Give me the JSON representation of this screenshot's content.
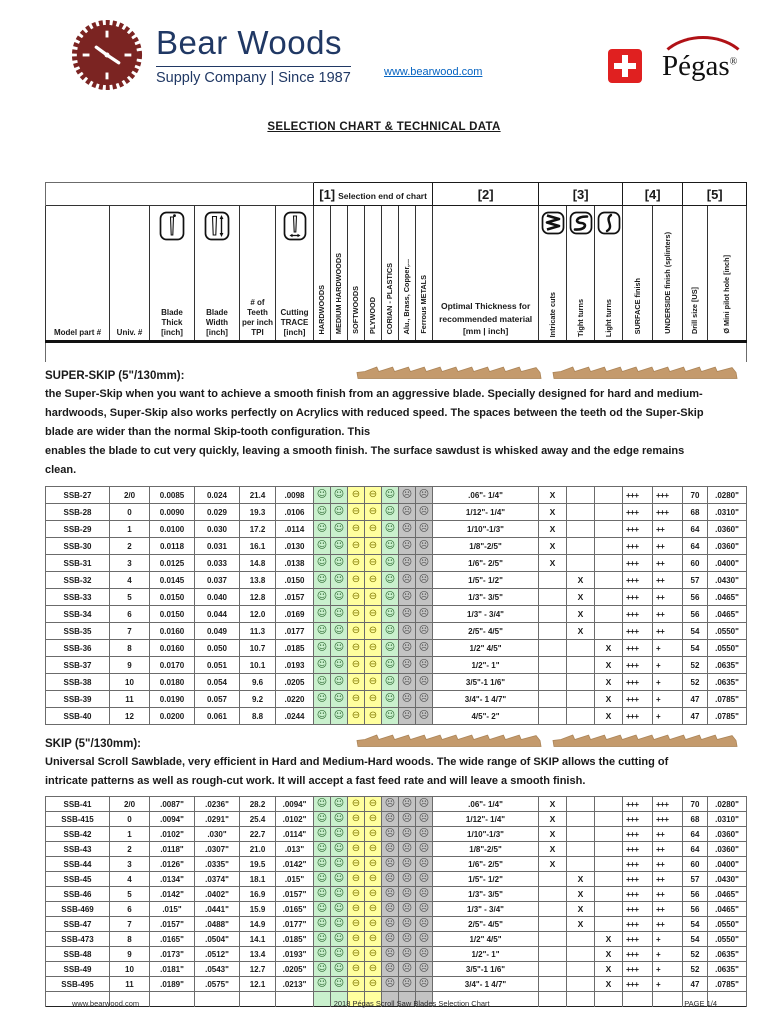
{
  "brand": {
    "name": "Bear Woods",
    "tagline": "Supply Company | Since 1987",
    "website": "www.bearwood.com",
    "partner": "Pégas",
    "partner_reg": "®",
    "colors": {
      "logo_maroon": "#7b2422",
      "navy": "#203864",
      "link_blue": "#0563c1",
      "swiss_red": "#e02020",
      "pegas_arc": "#b01116"
    }
  },
  "title": "SELECTION CHART & TECHNICAL DATA",
  "table": {
    "groups": [
      {
        "label": "[1]",
        "sublabel": "Selection end of chart"
      },
      {
        "label": "[2]",
        "sublabel": ""
      },
      {
        "label": "[3]",
        "sublabel": ""
      },
      {
        "label": "[4]",
        "sublabel": ""
      },
      {
        "label": "[5]",
        "sublabel": ""
      }
    ],
    "columns": [
      {
        "label": "Model part #"
      },
      {
        "label": "Univ. #"
      },
      {
        "label": "Blade Thick [inch]"
      },
      {
        "label": "Blade Width [inch]"
      },
      {
        "label": "# of Teeth per inch TPI"
      },
      {
        "label": "Cutting TRACE [inch]"
      },
      {
        "label": "HARDWOODS"
      },
      {
        "label": "MEDIUM HARDWOODS"
      },
      {
        "label": "SOFTWOODS"
      },
      {
        "label": "PLYWOOD"
      },
      {
        "label": "CORIAN - PLASTICS"
      },
      {
        "label": "Alu., Brass, Copper,..."
      },
      {
        "label": "Ferrous METALS"
      },
      {
        "label": "Optimal Thickness for recommended material [mm | inch]"
      },
      {
        "label": "Intricate cuts"
      },
      {
        "label": "Tight turns"
      },
      {
        "label": "Light turns"
      },
      {
        "label": "SURFACE finish"
      },
      {
        "label": "UNDERSIDE finish (splinters)"
      },
      {
        "label": "Drill size [US]"
      },
      {
        "label": "Ø Mini pilot hole [inch]"
      }
    ],
    "face_legend": {
      "happy": "☺",
      "neutral": "⊖",
      "sad": "☹"
    }
  },
  "sections": [
    {
      "heading": "SUPER-SKIP (5\"/130mm):",
      "description": "the Super-Skip when you want to achieve a smooth finish from an aggressive blade. Specially designed for hard and medium-hardwoods, Super-Skip also works perfectly on Acrylics with reduced speed. The spaces between the teeth od the Super-Skip blade are wider than the normal Skip-tooth configuration. This\nenables the blade to cut very quickly, leaving a smooth finish. The surface sawdust is whisked away and the edge remains clean.",
      "row_faces": [
        "happy",
        "happy",
        "neutral",
        "neutral",
        "happy",
        "sad",
        "sad"
      ],
      "partial_next_row": false,
      "rows": [
        {
          "model": "SSB-27",
          "univ": "2/0",
          "thick": "0.0085",
          "width": "0.024",
          "tpi": "21.4",
          "trace": ".0098",
          "range": ".06\"- 1/4\"",
          "turn": "intricate",
          "surface": "+++",
          "underside": "+++",
          "drill": "70",
          "pilot": ".0280\""
        },
        {
          "model": "SSB-28",
          "univ": "0",
          "thick": "0.0090",
          "width": "0.029",
          "tpi": "19.3",
          "trace": ".0106",
          "range": "1/12\"- 1/4\"",
          "turn": "intricate",
          "surface": "+++",
          "underside": "+++",
          "drill": "68",
          "pilot": ".0310\""
        },
        {
          "model": "SSB-29",
          "univ": "1",
          "thick": "0.0100",
          "width": "0.030",
          "tpi": "17.2",
          "trace": ".0114",
          "range": "1/10\"-1/3\"",
          "turn": "intricate",
          "surface": "+++",
          "underside": "++",
          "drill": "64",
          "pilot": ".0360\""
        },
        {
          "model": "SSB-30",
          "univ": "2",
          "thick": "0.0118",
          "width": "0.031",
          "tpi": "16.1",
          "trace": ".0130",
          "range": "1/8\"-2/5\"",
          "turn": "intricate",
          "surface": "+++",
          "underside": "++",
          "drill": "64",
          "pilot": ".0360\""
        },
        {
          "model": "SSB-31",
          "univ": "3",
          "thick": "0.0125",
          "width": "0.033",
          "tpi": "14.8",
          "trace": ".0138",
          "range": "1/6\"- 2/5\"",
          "turn": "intricate",
          "surface": "+++",
          "underside": "++",
          "drill": "60",
          "pilot": ".0400\""
        },
        {
          "model": "SSB-32",
          "univ": "4",
          "thick": "0.0145",
          "width": "0.037",
          "tpi": "13.8",
          "trace": ".0150",
          "range": "1/5\"- 1/2\"",
          "turn": "tight",
          "surface": "+++",
          "underside": "++",
          "drill": "57",
          "pilot": ".0430\""
        },
        {
          "model": "SSB-33",
          "univ": "5",
          "thick": "0.0150",
          "width": "0.040",
          "tpi": "12.8",
          "trace": ".0157",
          "range": "1/3\"- 3/5\"",
          "turn": "tight",
          "surface": "+++",
          "underside": "++",
          "drill": "56",
          "pilot": ".0465\""
        },
        {
          "model": "SSB-34",
          "univ": "6",
          "thick": "0.0150",
          "width": "0.044",
          "tpi": "12.0",
          "trace": ".0169",
          "range": "1/3\" - 3/4\"",
          "turn": "tight",
          "surface": "+++",
          "underside": "++",
          "drill": "56",
          "pilot": ".0465\""
        },
        {
          "model": "SSB-35",
          "univ": "7",
          "thick": "0.0160",
          "width": "0.049",
          "tpi": "11.3",
          "trace": ".0177",
          "range": "2/5\"- 4/5\"",
          "turn": "tight",
          "surface": "+++",
          "underside": "++",
          "drill": "54",
          "pilot": ".0550\""
        },
        {
          "model": "SSB-36",
          "univ": "8",
          "thick": "0.0160",
          "width": "0.050",
          "tpi": "10.7",
          "trace": ".0185",
          "range": "1/2\" 4/5\"",
          "turn": "light",
          "surface": "+++",
          "underside": "+",
          "drill": "54",
          "pilot": ".0550\""
        },
        {
          "model": "SSB-37",
          "univ": "9",
          "thick": "0.0170",
          "width": "0.051",
          "tpi": "10.1",
          "trace": ".0193",
          "range": "1/2\"- 1\"",
          "turn": "light",
          "surface": "+++",
          "underside": "+",
          "drill": "52",
          "pilot": ".0635\""
        },
        {
          "model": "SSB-38",
          "univ": "10",
          "thick": "0.0180",
          "width": "0.054",
          "tpi": "9.6",
          "trace": ".0205",
          "range": "3/5\"-1 1/6\"",
          "turn": "light",
          "surface": "+++",
          "underside": "+",
          "drill": "52",
          "pilot": ".0635\""
        },
        {
          "model": "SSB-39",
          "univ": "11",
          "thick": "0.0190",
          "width": "0.057",
          "tpi": "9.2",
          "trace": ".0220",
          "range": "3/4\"- 1 4/7\"",
          "turn": "light",
          "surface": "+++",
          "underside": "+",
          "drill": "47",
          "pilot": ".0785\""
        },
        {
          "model": "SSB-40",
          "univ": "12",
          "thick": "0.0200",
          "width": "0.061",
          "tpi": "8.8",
          "trace": ".0244",
          "range": "4/5\"- 2\"",
          "turn": "light",
          "surface": "+++",
          "underside": "+",
          "drill": "47",
          "pilot": ".0785\""
        }
      ]
    },
    {
      "heading": "SKIP (5\"/130mm):",
      "description": "Universal Scroll Sawblade, very efficient in Hard and Medium-Hard woods. The wide range of SKIP allows the cutting of intricate patterns as well as rough-cut work. It will accept a fast feed rate and will leave a smooth finish.",
      "row_faces": [
        "happy",
        "happy",
        "neutral",
        "neutral",
        "sad",
        "sad",
        "sad"
      ],
      "partial_next_row": true,
      "rows": [
        {
          "model": "SSB-41",
          "univ": "2/0",
          "thick": ".0087\"",
          "width": ".0236\"",
          "tpi": "28.2",
          "trace": ".0094\"",
          "range": ".06\"- 1/4\"",
          "turn": "intricate",
          "surface": "+++",
          "underside": "+++",
          "drill": "70",
          "pilot": ".0280\""
        },
        {
          "model": "SSB-415",
          "univ": "0",
          "thick": ".0094\"",
          "width": ".0291\"",
          "tpi": "25.4",
          "trace": ".0102\"",
          "range": "1/12\"- 1/4\"",
          "turn": "intricate",
          "surface": "+++",
          "underside": "+++",
          "drill": "68",
          "pilot": ".0310\""
        },
        {
          "model": "SSB-42",
          "univ": "1",
          "thick": ".0102\"",
          "width": ".030\"",
          "tpi": "22.7",
          "trace": ".0114\"",
          "range": "1/10\"-1/3\"",
          "turn": "intricate",
          "surface": "+++",
          "underside": "++",
          "drill": "64",
          "pilot": ".0360\""
        },
        {
          "model": "SSB-43",
          "univ": "2",
          "thick": ".0118\"",
          "width": ".0307\"",
          "tpi": "21.0",
          "trace": ".013\"",
          "range": "1/8\"-2/5\"",
          "turn": "intricate",
          "surface": "+++",
          "underside": "++",
          "drill": "64",
          "pilot": ".0360\""
        },
        {
          "model": "SSB-44",
          "univ": "3",
          "thick": ".0126\"",
          "width": ".0335\"",
          "tpi": "19.5",
          "trace": ".0142\"",
          "range": "1/6\"- 2/5\"",
          "turn": "intricate",
          "surface": "+++",
          "underside": "++",
          "drill": "60",
          "pilot": ".0400\""
        },
        {
          "model": "SSB-45",
          "univ": "4",
          "thick": ".0134\"",
          "width": ".0374\"",
          "tpi": "18.1",
          "trace": ".015\"",
          "range": "1/5\"- 1/2\"",
          "turn": "tight",
          "surface": "+++",
          "underside": "++",
          "drill": "57",
          "pilot": ".0430\""
        },
        {
          "model": "SSB-46",
          "univ": "5",
          "thick": ".0142\"",
          "width": ".0402\"",
          "tpi": "16.9",
          "trace": ".0157\"",
          "range": "1/3\"- 3/5\"",
          "turn": "tight",
          "surface": "+++",
          "underside": "++",
          "drill": "56",
          "pilot": ".0465\""
        },
        {
          "model": "SSB-469",
          "univ": "6",
          "thick": ".015\"",
          "width": ".0441\"",
          "tpi": "15.9",
          "trace": ".0165\"",
          "range": "1/3\" - 3/4\"",
          "turn": "tight",
          "surface": "+++",
          "underside": "++",
          "drill": "56",
          "pilot": ".0465\""
        },
        {
          "model": "SSB-47",
          "univ": "7",
          "thick": ".0157\"",
          "width": ".0488\"",
          "tpi": "14.9",
          "trace": ".0177\"",
          "range": "2/5\"- 4/5\"",
          "turn": "tight",
          "surface": "+++",
          "underside": "++",
          "drill": "54",
          "pilot": ".0550\""
        },
        {
          "model": "SSB-473",
          "univ": "8",
          "thick": ".0165\"",
          "width": ".0504\"",
          "tpi": "14.1",
          "trace": ".0185\"",
          "range": "1/2\" 4/5\"",
          "turn": "light",
          "surface": "+++",
          "underside": "+",
          "drill": "54",
          "pilot": ".0550\""
        },
        {
          "model": "SSB-48",
          "univ": "9",
          "thick": ".0173\"",
          "width": ".0512\"",
          "tpi": "13.4",
          "trace": ".0193\"",
          "range": "1/2\"- 1\"",
          "turn": "light",
          "surface": "+++",
          "underside": "+",
          "drill": "52",
          "pilot": ".0635\""
        },
        {
          "model": "SSB-49",
          "univ": "10",
          "thick": ".0181\"",
          "width": ".0543\"",
          "tpi": "12.7",
          "trace": ".0205\"",
          "range": "3/5\"-1 1/6\"",
          "turn": "light",
          "surface": "+++",
          "underside": "+",
          "drill": "52",
          "pilot": ".0635\""
        },
        {
          "model": "SSB-495",
          "univ": "11",
          "thick": ".0189\"",
          "width": ".0575\"",
          "tpi": "12.1",
          "trace": ".0213\"",
          "range": "3/4\"- 1 4/7\"",
          "turn": "light",
          "surface": "+++",
          "underside": "+",
          "drill": "47",
          "pilot": ".0785\""
        }
      ]
    }
  ],
  "footer": {
    "left": "www.bearwood.com",
    "center": "2018 Pégas Scroll Saw Blades Selection Chart",
    "right": "PAGE 1/4"
  }
}
